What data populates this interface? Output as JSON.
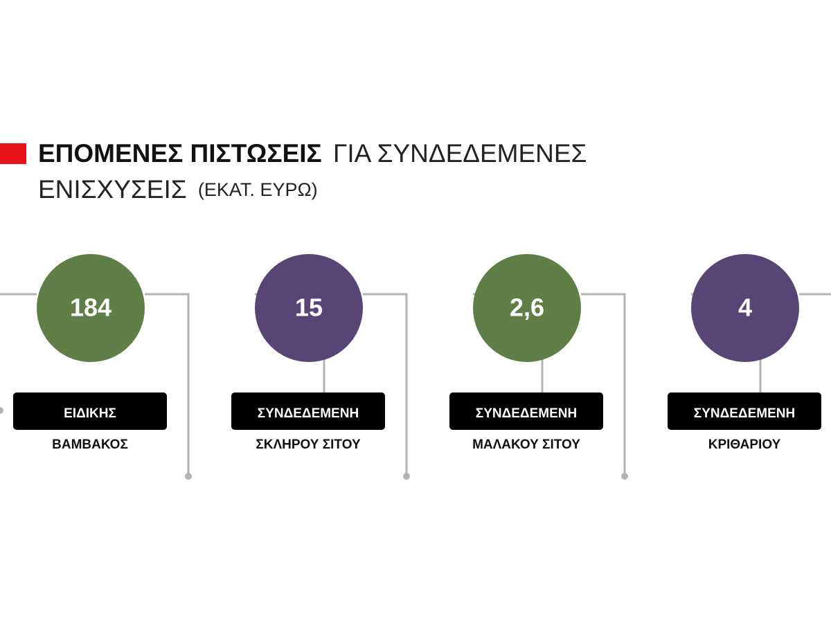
{
  "header": {
    "title_bold": "ΕΠΟΜΕΝΕΣ ΠΙΣΤΩΣΕΙΣ",
    "title_regular": "ΓΙΑ ΣΥΝΔΕΔΕΜΕΝΕΣ",
    "title_line2": "ΕΝΙΣΧΥΣΕΙΣ",
    "unit": "(ΕΚΑΤ. ΕΥΡΩ)"
  },
  "items": [
    {
      "value": "184",
      "label": "ΕΙΔΙΚΗΣ",
      "sublabel": "ΒΑΜΒΑΚΟΣ",
      "color": "#5f7f46"
    },
    {
      "value": "15",
      "label": "ΣΥΝΔΕΔΕΜΕΝΗ",
      "sublabel": "ΣΚΛΗΡΟΥ ΣΙΤΟΥ",
      "color": "#574576"
    },
    {
      "value": "2,6",
      "label": "ΣΥΝΔΕΔΕΜΕΝΗ",
      "sublabel": "ΜΑΛΑΚΟΥ ΣΙΤΟΥ",
      "color": "#5f7f46"
    },
    {
      "value": "4",
      "label": "ΣΥΝΔΕΔΕΜΕΝΗ",
      "sublabel": "ΚΡΙΘΑΡΙΟΥ",
      "color": "#574576"
    }
  ]
}
